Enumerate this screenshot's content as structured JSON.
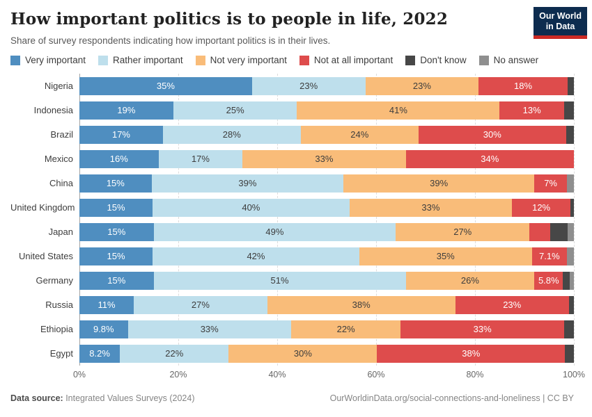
{
  "header": {
    "title": "How important politics is to people in life, 2022",
    "subtitle": "Share of survey respondents indicating how important politics is in their lives.",
    "logo": {
      "line1": "Our World",
      "line2": "in Data",
      "bg_color": "#0d2c4f",
      "accent_color": "#cc2a24"
    }
  },
  "chart_data": {
    "type": "bar",
    "stacked": true,
    "orientation": "horizontal",
    "unit": "%",
    "xlim": [
      0,
      100
    ],
    "grid": "dashed-vertical",
    "x_tick_labels": [
      "0%",
      "20%",
      "40%",
      "60%",
      "80%",
      "100%"
    ],
    "series": [
      {
        "name": "Very important",
        "color": "#4f8ec0",
        "label_color": "#ffffff"
      },
      {
        "name": "Rather important",
        "color": "#bedfec",
        "label_color": "#3d3d3d"
      },
      {
        "name": "Not very important",
        "color": "#f9bc79",
        "label_color": "#3d3d3d"
      },
      {
        "name": "Not at all important",
        "color": "#de4c4c",
        "label_color": "#ffffff"
      },
      {
        "name": "Don't know",
        "color": "#474747",
        "label_color": "#ffffff"
      },
      {
        "name": "No answer",
        "color": "#8f8f8f",
        "label_color": "#ffffff"
      }
    ],
    "rows": [
      {
        "country": "Nigeria",
        "values": [
          35,
          23,
          23,
          18,
          1.3,
          0
        ],
        "labels": [
          "35%",
          "23%",
          "23%",
          "18%",
          "",
          ""
        ]
      },
      {
        "country": "Indonesia",
        "values": [
          19,
          25,
          41,
          13,
          2,
          0
        ],
        "labels": [
          "19%",
          "25%",
          "41%",
          "13%",
          "",
          ""
        ]
      },
      {
        "country": "Brazil",
        "values": [
          17,
          28,
          24,
          30,
          1.6,
          0
        ],
        "labels": [
          "17%",
          "28%",
          "24%",
          "30%",
          "",
          ""
        ]
      },
      {
        "country": "Mexico",
        "values": [
          16,
          17,
          33,
          34,
          0,
          0
        ],
        "labels": [
          "16%",
          "17%",
          "33%",
          "34%",
          "",
          ""
        ]
      },
      {
        "country": "China",
        "values": [
          14.6,
          38.8,
          38.6,
          6.6,
          0,
          1.4
        ],
        "labels": [
          "15%",
          "39%",
          "39%",
          "7%",
          "",
          ""
        ]
      },
      {
        "country": "United Kingdom",
        "values": [
          14.8,
          39.8,
          32.9,
          11.8,
          0.7,
          0
        ],
        "labels": [
          "15%",
          "40%",
          "33%",
          "12%",
          "",
          ""
        ]
      },
      {
        "country": "Japan",
        "values": [
          15,
          49,
          27,
          4.2,
          3.5,
          1.3
        ],
        "labels": [
          "15%",
          "49%",
          "27%",
          "",
          "",
          ""
        ]
      },
      {
        "country": "United States",
        "values": [
          14.8,
          41.8,
          34.9,
          7.1,
          0,
          1.4
        ],
        "labels": [
          "15%",
          "42%",
          "35%",
          "7.1%",
          "",
          ""
        ]
      },
      {
        "country": "Germany",
        "values": [
          15,
          51,
          26,
          5.8,
          1.4,
          0.8
        ],
        "labels": [
          "15%",
          "51%",
          "26%",
          "5.8%",
          "",
          ""
        ]
      },
      {
        "country": "Russia",
        "values": [
          11,
          27,
          38,
          23,
          1,
          0
        ],
        "labels": [
          "11%",
          "27%",
          "38%",
          "23%",
          "",
          ""
        ]
      },
      {
        "country": "Ethiopia",
        "values": [
          9.8,
          33,
          22.2,
          33,
          2,
          0
        ],
        "labels": [
          "9.8%",
          "33%",
          "22%",
          "33%",
          "",
          ""
        ]
      },
      {
        "country": "Egypt",
        "values": [
          8.2,
          22,
          30,
          38,
          1.8,
          0
        ],
        "labels": [
          "8.2%",
          "22%",
          "30%",
          "38%",
          "",
          ""
        ]
      }
    ]
  },
  "footer": {
    "source_label": "Data source:",
    "source_text": " Integrated Values Surveys (2024)",
    "credit": "OurWorldinData.org/social-connections-and-loneliness | CC BY"
  }
}
